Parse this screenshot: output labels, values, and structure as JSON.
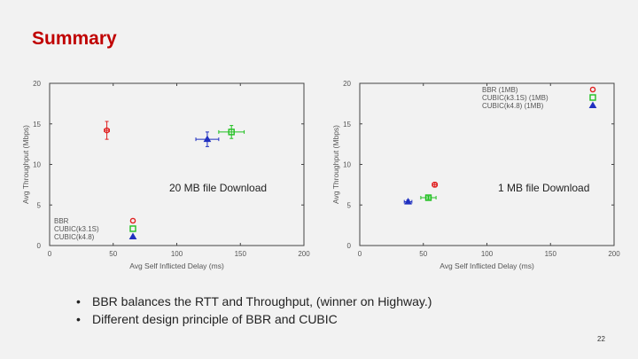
{
  "slide": {
    "title": "Summary",
    "bullets": [
      "BBR balances the RTT and Throughput, (winner on Highway.)",
      "Different design principle of BBR and CUBIC"
    ],
    "page_number": "22"
  },
  "colors": {
    "title": "#c00000",
    "bbr": "#e02020",
    "cubic_k31": "#20c020",
    "cubic_k48": "#2030c0"
  },
  "chart_data": [
    {
      "type": "scatter",
      "annotation": "20 MB file Download",
      "xlabel": "Avg Self Inflicted Delay (ms)",
      "ylabel": "Avg Throughput (Mbps)",
      "xlim": [
        0,
        200
      ],
      "ylim": [
        0,
        20
      ],
      "xticks": [
        0,
        50,
        100,
        150,
        200
      ],
      "yticks": [
        0,
        5,
        10,
        15,
        20
      ],
      "legend_position": "bottom-left",
      "series": [
        {
          "name": "BBR",
          "marker": "circle",
          "color": "#e02020",
          "x": 45,
          "y": 14.2,
          "xerr": 2,
          "yerr": 1.1
        },
        {
          "name": "CUBIC(k3.1S)",
          "marker": "square",
          "color": "#20c020",
          "x": 143,
          "y": 14.0,
          "xerr": 10,
          "yerr": 0.8
        },
        {
          "name": "CUBIC(k4.8)",
          "marker": "triangle",
          "color": "#2030c0",
          "x": 124,
          "y": 13.1,
          "xerr": 9,
          "yerr": 0.9
        }
      ]
    },
    {
      "type": "scatter",
      "annotation": "1 MB file Download",
      "xlabel": "Avg Self Inflicted Delay (ms)",
      "ylabel": "Avg Throughput (Mbps)",
      "xlim": [
        0,
        200
      ],
      "ylim": [
        0,
        20
      ],
      "xticks": [
        0,
        50,
        100,
        150,
        200
      ],
      "yticks": [
        0,
        5,
        10,
        15,
        20
      ],
      "legend_position": "top-right",
      "series": [
        {
          "name": "BBR (1MB)",
          "marker": "circle",
          "color": "#e02020",
          "x": 59,
          "y": 7.5,
          "xerr": 2,
          "yerr": 0.3
        },
        {
          "name": "CUBIC(k3.1S) (1MB)",
          "marker": "square",
          "color": "#20c020",
          "x": 54,
          "y": 5.9,
          "xerr": 6,
          "yerr": 0.2
        },
        {
          "name": "CUBIC(k4.8) (1MB)",
          "marker": "triangle",
          "color": "#2030c0",
          "x": 38,
          "y": 5.4,
          "xerr": 3,
          "yerr": 0.2
        }
      ]
    }
  ]
}
